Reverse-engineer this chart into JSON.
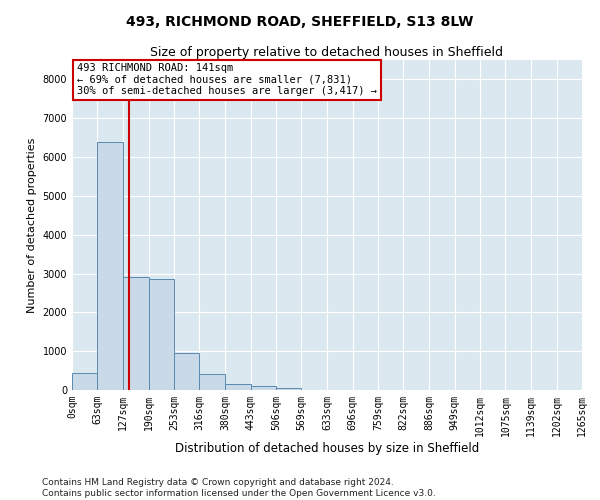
{
  "title1": "493, RICHMOND ROAD, SHEFFIELD, S13 8LW",
  "title2": "Size of property relative to detached houses in Sheffield",
  "xlabel": "Distribution of detached houses by size in Sheffield",
  "ylabel": "Number of detached properties",
  "bar_edges": [
    0,
    63,
    127,
    190,
    253,
    316,
    380,
    443,
    506,
    569,
    633,
    696,
    759,
    822,
    886,
    949,
    1012,
    1075,
    1139,
    1202,
    1265
  ],
  "bar_labels": [
    "0sqm",
    "63sqm",
    "127sqm",
    "190sqm",
    "253sqm",
    "316sqm",
    "380sqm",
    "443sqm",
    "506sqm",
    "569sqm",
    "633sqm",
    "696sqm",
    "759sqm",
    "822sqm",
    "886sqm",
    "949sqm",
    "1012sqm",
    "1075sqm",
    "1139sqm",
    "1202sqm",
    "1265sqm"
  ],
  "bar_heights": [
    430,
    6400,
    2900,
    2850,
    950,
    400,
    150,
    100,
    60,
    0,
    0,
    0,
    0,
    0,
    0,
    0,
    0,
    0,
    0,
    0
  ],
  "bar_color": "#c9d9e8",
  "bar_edgecolor": "#5a8ab0",
  "property_line_x": 141,
  "property_line_color": "#cc0000",
  "ylim": [
    0,
    8500
  ],
  "yticks": [
    0,
    1000,
    2000,
    3000,
    4000,
    5000,
    6000,
    7000,
    8000
  ],
  "annotation_line1": "493 RICHMOND ROAD: 141sqm",
  "annotation_line2": "← 69% of detached houses are smaller (7,831)",
  "annotation_line3": "30% of semi-detached houses are larger (3,417) →",
  "annotation_box_color": "#cc0000",
  "footer_text": "Contains HM Land Registry data © Crown copyright and database right 2024.\nContains public sector information licensed under the Open Government Licence v3.0.",
  "bg_color": "#dce8f0",
  "grid_color": "#ffffff",
  "title1_fontsize": 10,
  "title2_fontsize": 9,
  "xlabel_fontsize": 8.5,
  "ylabel_fontsize": 8,
  "tick_fontsize": 7,
  "annotation_fontsize": 7.5,
  "footer_fontsize": 6.5
}
